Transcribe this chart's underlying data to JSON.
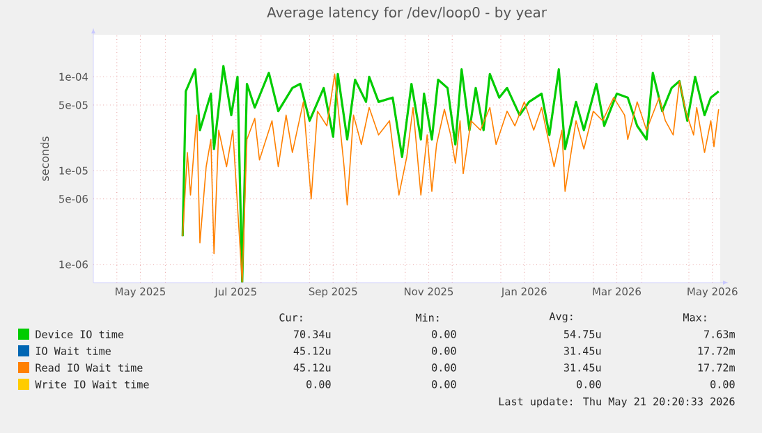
{
  "chart_data": {
    "type": "line",
    "title": "Average latency for /dev/loop0 - by year",
    "ylabel": "seconds",
    "log": true,
    "grid": true,
    "legend": "bottom",
    "marker": "none",
    "line_style": "solid",
    "xlim": [
      "2025-04-16",
      "2026-05-21"
    ],
    "ylim": [
      6.4e-07,
      0.00028
    ],
    "xticks": [
      {
        "value": "2025-05-01",
        "label": null
      },
      {
        "value": "2025-05-16",
        "label": "May 2025"
      },
      {
        "value": "2025-06-01",
        "label": null
      },
      {
        "value": "2025-07-01",
        "label": null
      },
      {
        "value": "2025-07-16",
        "label": "Jul 2025"
      },
      {
        "value": "2025-08-01",
        "label": null
      },
      {
        "value": "2025-09-01",
        "label": null
      },
      {
        "value": "2025-09-16",
        "label": "Sep 2025"
      },
      {
        "value": "2025-10-01",
        "label": null
      },
      {
        "value": "2025-11-01",
        "label": null
      },
      {
        "value": "2025-11-16",
        "label": "Nov 2025"
      },
      {
        "value": "2025-12-01",
        "label": null
      },
      {
        "value": "2026-01-01",
        "label": null
      },
      {
        "value": "2026-01-16",
        "label": "Jan 2026"
      },
      {
        "value": "2026-02-01",
        "label": null
      },
      {
        "value": "2026-03-01",
        "label": null
      },
      {
        "value": "2026-03-16",
        "label": "Mar 2026"
      },
      {
        "value": "2026-04-01",
        "label": null
      },
      {
        "value": "2026-05-01",
        "label": null
      },
      {
        "value": "2026-05-16",
        "label": "May 2026"
      }
    ],
    "yticks": [
      {
        "value": 1e-06,
        "label": "1e-06"
      },
      {
        "value": 5e-06,
        "label": "5e-06"
      },
      {
        "value": 1e-05,
        "label": "1e-05"
      },
      {
        "value": 5e-05,
        "label": "5e-05"
      },
      {
        "value": 0.0001,
        "label": "1e-04"
      }
    ],
    "series": [
      {
        "name": "Device IO time",
        "color": "#00cc00",
        "x": [
          "2025-06-12",
          "2025-06-14",
          "2025-06-20",
          "2025-06-23",
          "2025-06-30",
          "2025-07-02",
          "2025-07-08",
          "2025-07-13",
          "2025-07-17",
          "2025-07-20",
          "2025-07-23",
          "2025-07-28",
          "2025-08-06",
          "2025-08-12",
          "2025-08-21",
          "2025-08-26",
          "2025-09-01",
          "2025-09-10",
          "2025-09-16",
          "2025-09-19",
          "2025-09-25",
          "2025-09-30",
          "2025-10-07",
          "2025-10-09",
          "2025-10-15",
          "2025-10-24",
          "2025-10-30",
          "2025-11-05",
          "2025-11-11",
          "2025-11-13",
          "2025-11-18",
          "2025-11-22",
          "2025-11-28",
          "2025-12-03",
          "2025-12-07",
          "2025-12-12",
          "2025-12-16",
          "2025-12-21",
          "2025-12-25",
          "2025-12-31",
          "2026-01-05",
          "2026-01-13",
          "2026-01-19",
          "2026-01-27",
          "2026-02-01",
          "2026-02-07",
          "2026-02-11",
          "2026-02-18",
          "2026-02-23",
          "2026-03-03",
          "2026-03-08",
          "2026-03-16",
          "2026-03-23",
          "2026-03-29",
          "2026-04-04",
          "2026-04-08",
          "2026-04-14",
          "2026-04-20",
          "2026-04-25",
          "2026-04-30",
          "2026-05-05",
          "2026-05-11",
          "2026-05-15",
          "2026-05-20"
        ],
        "values": [
          2e-06,
          7e-05,
          0.00012,
          2.7e-05,
          6.6e-05,
          1.7e-05,
          0.00013,
          3.9e-05,
          0.0001,
          6.5e-07,
          8.4e-05,
          4.7e-05,
          0.00011,
          4.3e-05,
          7.6e-05,
          8.4e-05,
          3.4e-05,
          7.6e-05,
          2.3e-05,
          0.000107,
          2.15e-05,
          9.3e-05,
          5.4e-05,
          0.0001,
          5.4e-05,
          6e-05,
          1.4e-05,
          8.4e-05,
          2.15e-05,
          6.6e-05,
          2.15e-05,
          9.3e-05,
          7.6e-05,
          1.9e-05,
          0.00012,
          2.7e-05,
          7.6e-05,
          2.7e-05,
          0.000107,
          6e-05,
          7.6e-05,
          3.9e-05,
          5.4e-05,
          6.6e-05,
          2.4e-05,
          0.00012,
          1.7e-05,
          5.4e-05,
          2.7e-05,
          8.4e-05,
          3e-05,
          6.6e-05,
          6e-05,
          3e-05,
          2.15e-05,
          0.00011,
          4.3e-05,
          7.6e-05,
          9e-05,
          3.4e-05,
          0.0001,
          3.9e-05,
          6e-05,
          7e-05
        ]
      },
      {
        "name": "IO Wait time",
        "color": "#0066b3"
      },
      {
        "name": "Read IO Wait time",
        "color": "#ff8000",
        "x": [
          "2025-06-12",
          "2025-06-15",
          "2025-06-17",
          "2025-06-21",
          "2025-06-23",
          "2025-06-27",
          "2025-06-30",
          "2025-07-02",
          "2025-07-05",
          "2025-07-10",
          "2025-07-14",
          "2025-07-20",
          "2025-07-23",
          "2025-07-28",
          "2025-07-31",
          "2025-08-08",
          "2025-08-12",
          "2025-08-17",
          "2025-08-21",
          "2025-08-28",
          "2025-09-02",
          "2025-09-06",
          "2025-09-12",
          "2025-09-17",
          "2025-09-23",
          "2025-09-25",
          "2025-09-29",
          "2025-10-04",
          "2025-10-09",
          "2025-10-15",
          "2025-10-22",
          "2025-10-28",
          "2025-11-02",
          "2025-11-06",
          "2025-11-11",
          "2025-11-15",
          "2025-11-18",
          "2025-11-21",
          "2025-11-26",
          "2025-11-30",
          "2025-12-03",
          "2025-12-06",
          "2025-12-08",
          "2025-12-13",
          "2025-12-19",
          "2025-12-25",
          "2025-12-29",
          "2026-01-05",
          "2026-01-10",
          "2026-01-16",
          "2026-01-22",
          "2026-01-27",
          "2026-02-04",
          "2026-02-09",
          "2026-02-11",
          "2026-02-18",
          "2026-02-23",
          "2026-03-01",
          "2026-03-07",
          "2026-03-14",
          "2026-03-21",
          "2026-03-23",
          "2026-03-29",
          "2026-04-04",
          "2026-04-12",
          "2026-04-16",
          "2026-04-21",
          "2026-04-25",
          "2026-04-29",
          "2026-05-04",
          "2026-05-06",
          "2026-05-11",
          "2026-05-15",
          "2026-05-17",
          "2026-05-20"
        ],
        "values": [
          2e-06,
          1.56e-05,
          5.5e-06,
          3.9e-05,
          1.7e-06,
          1.1e-05,
          2.15e-05,
          1.3e-06,
          2.7e-05,
          1.1e-05,
          2.7e-05,
          6.5e-07,
          2.15e-05,
          3.6e-05,
          1.3e-05,
          3.4e-05,
          1.1e-05,
          3.9e-05,
          1.56e-05,
          5.4e-05,
          5e-06,
          4.3e-05,
          3e-05,
          0.000107,
          1.1e-05,
          4.3e-06,
          3.9e-05,
          1.9e-05,
          4.7e-05,
          2.4e-05,
          3.4e-05,
          5.5e-06,
          1.4e-05,
          4.7e-05,
          5.5e-06,
          2.4e-05,
          6e-06,
          1.9e-05,
          4.5e-05,
          2.4e-05,
          1.2e-05,
          3.4e-05,
          9.3e-06,
          3.4e-05,
          2.7e-05,
          4.7e-05,
          1.9e-05,
          4.3e-05,
          3e-05,
          5.4e-05,
          2.7e-05,
          4.7e-05,
          1.1e-05,
          2.7e-05,
          6e-06,
          3.4e-05,
          1.7e-05,
          4.3e-05,
          3.4e-05,
          6e-05,
          3.9e-05,
          2.15e-05,
          5.4e-05,
          2.7e-05,
          6e-05,
          3.4e-05,
          2.4e-05,
          9e-05,
          4.3e-05,
          2.4e-05,
          4.7e-05,
          1.56e-05,
          3.4e-05,
          1.8e-05,
          4.5e-05
        ]
      },
      {
        "name": "Write IO Wait time",
        "color": "#ffcc00"
      }
    ],
    "annotations": [
      "Cur:",
      "Min:",
      "Avg:",
      "Max:",
      "70.34u",
      "0.00",
      "54.75u",
      "7.63m",
      "45.12u",
      "0.00",
      "31.45u",
      "17.72m",
      "45.12u",
      "0.00",
      "31.45u",
      "17.72m",
      "0.00",
      "0.00",
      "0.00",
      "0.00",
      "Last update: Thu May 21 20:20:33 2026"
    ]
  }
}
